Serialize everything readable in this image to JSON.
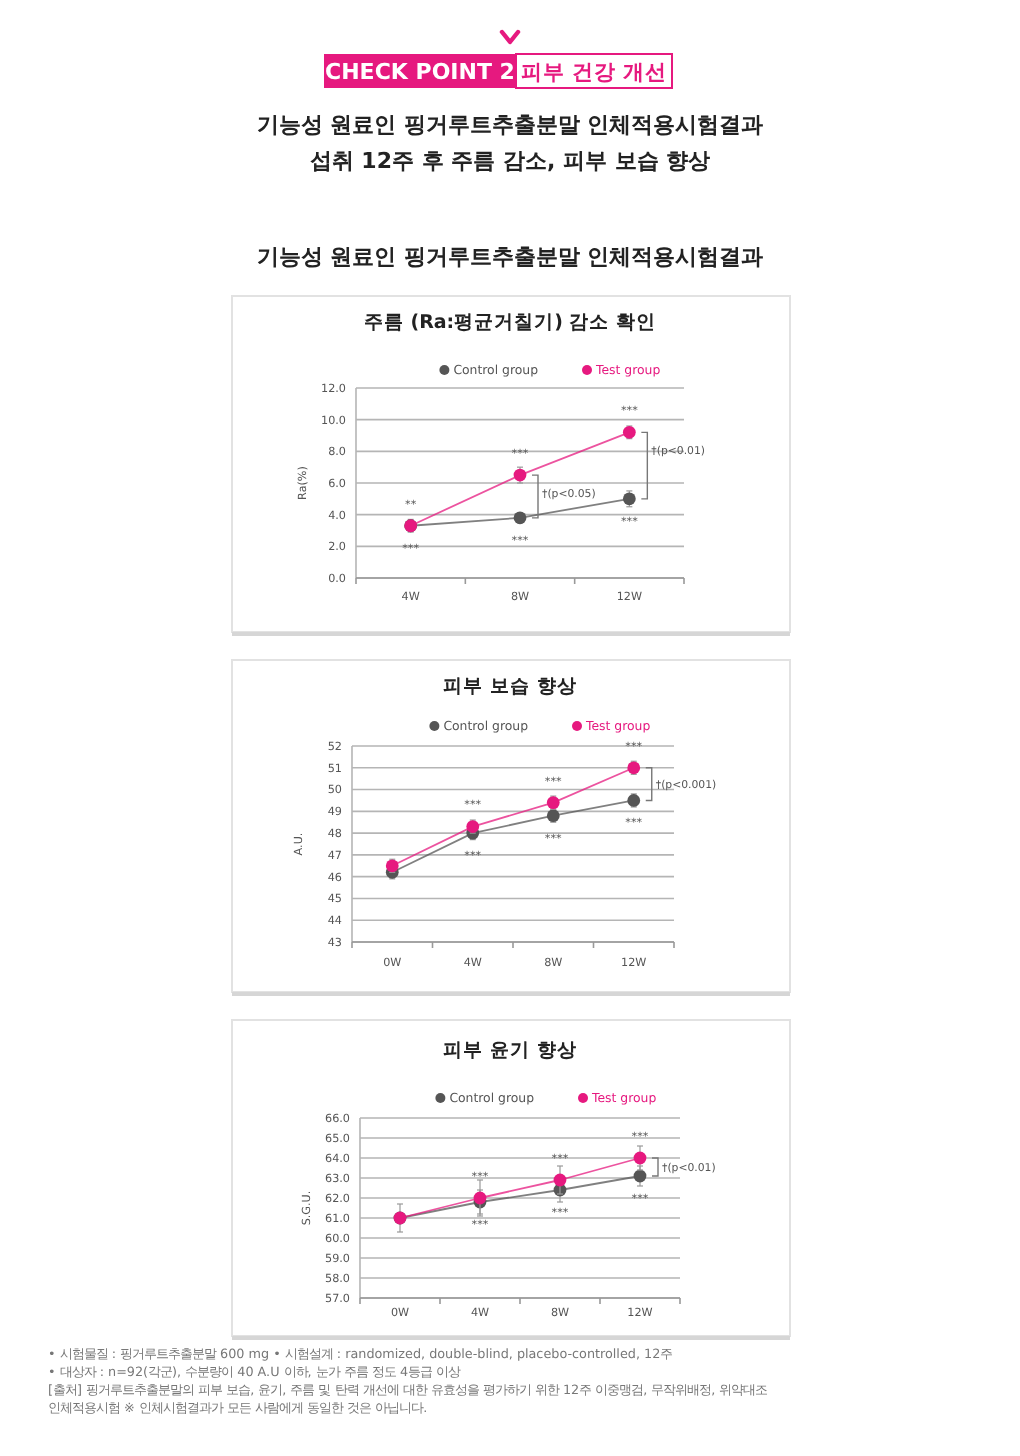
{
  "chart_data": [
    {
      "type": "other",
      "title": "기능성 원료인 핑거루트추출분말 인체적용시험결과",
      "annotations": [
        "CHECK POINT 2",
        "피부 건강 개선",
        "기능성 원료인 핑거루트추출분말 인체적용시험결과",
        "섭취 12주 후 주름 감소, 피부 보습 향상"
      ]
    },
    {
      "type": "line",
      "title": "주름 (Ra:평균거칠기) 감소 확인",
      "ylabel": "Ra(%)",
      "categories": [
        "4W",
        "8W",
        "12W"
      ],
      "ylim": [
        0,
        12
      ],
      "yticks": [
        {
          "value": 0,
          "label": "0.0"
        },
        {
          "value": 2,
          "label": "2.0"
        },
        {
          "value": 4,
          "label": "4.0"
        },
        {
          "value": 6,
          "label": "6.0"
        },
        {
          "value": 8,
          "label": "8.0"
        },
        {
          "value": 10,
          "label": "10.0"
        },
        {
          "value": 12,
          "label": "12.0"
        }
      ],
      "grid": "y",
      "legend": "top right",
      "marker": "circle",
      "line_style": "solid",
      "series": [
        {
          "name": "Control group",
          "color": "#555555",
          "values": [
            3.3,
            3.8,
            5.0
          ],
          "errors": [
            0.4,
            0.3,
            0.5
          ]
        },
        {
          "name": "Test group",
          "color": "#e6197f",
          "values": [
            3.3,
            6.5,
            9.2
          ],
          "errors": [
            0.3,
            0.5,
            0.4
          ]
        }
      ],
      "annotations": [
        {
          "text": "**",
          "x": "4W",
          "y": 3.3
        },
        {
          "text": "***",
          "x": "4W",
          "y": 3.3
        },
        {
          "text": "***",
          "x": "8W",
          "y": 6.5
        },
        {
          "text": "***",
          "x": "8W",
          "y": 3.8
        },
        {
          "text": "†(p<0.05)",
          "x": "8W",
          "y": 6.5
        },
        {
          "text": "***",
          "x": "12W",
          "y": 9.2
        },
        {
          "text": "***",
          "x": "12W",
          "y": 5.0
        },
        {
          "text": "†(p<0.01)",
          "x": "12W",
          "y": 9.2
        }
      ]
    },
    {
      "type": "line",
      "title": "피부 보습 향상",
      "ylabel": "A.U.",
      "categories": [
        "0W",
        "4W",
        "8W",
        "12W"
      ],
      "ylim": [
        43,
        52
      ],
      "yticks": [
        43,
        44,
        45,
        46,
        47,
        48,
        49,
        50,
        51,
        52
      ],
      "grid": "y",
      "legend": "top right",
      "marker": "circle",
      "line_style": "solid",
      "series": [
        {
          "name": "Control group",
          "color": "#555555",
          "values": [
            46.2,
            48.0,
            48.8,
            49.5
          ],
          "errors": [
            0.3,
            0.3,
            0.3,
            0.3
          ]
        },
        {
          "name": "Test group",
          "color": "#e6197f",
          "values": [
            46.5,
            48.3,
            49.4,
            51.0
          ],
          "errors": [
            0.3,
            0.3,
            0.3,
            0.3
          ]
        }
      ],
      "annotations": [
        {
          "text": "***",
          "x": "4W",
          "y": 48.3
        },
        {
          "text": "***",
          "x": "4W",
          "y": 48.0
        },
        {
          "text": "***",
          "x": "8W",
          "y": 49.4
        },
        {
          "text": "***",
          "x": "8W",
          "y": 48.8
        },
        {
          "text": "***",
          "x": "12W",
          "y": 51.0
        },
        {
          "text": "***",
          "x": "12W",
          "y": 49.5
        },
        {
          "text": "†(p<0.001)",
          "x": "12W",
          "y": 51.0
        }
      ]
    },
    {
      "type": "line",
      "title": "피부 윤기 향상",
      "ylabel": "S.G.U.",
      "categories": [
        "0W",
        "4W",
        "8W",
        "12W"
      ],
      "ylim": [
        57,
        66
      ],
      "yticks": [
        {
          "value": 57,
          "label": "57.0"
        },
        {
          "value": 58,
          "label": "58.0"
        },
        {
          "value": 59,
          "label": "59.0"
        },
        {
          "value": 60,
          "label": "60.0"
        },
        {
          "value": 61,
          "label": "61.0"
        },
        {
          "value": 62,
          "label": "62.0"
        },
        {
          "value": 63,
          "label": "63.0"
        },
        {
          "value": 64,
          "label": "64.0"
        },
        {
          "value": 65,
          "label": "65.0"
        },
        {
          "value": 66,
          "label": "66.0"
        }
      ],
      "grid": "y",
      "legend": "top right",
      "marker": "circle",
      "line_style": "solid",
      "series": [
        {
          "name": "Control group",
          "color": "#555555",
          "values": [
            61.0,
            61.8,
            62.4,
            63.1
          ],
          "errors": [
            0.7,
            0.6,
            0.6,
            0.5
          ]
        },
        {
          "name": "Test group",
          "color": "#e6197f",
          "values": [
            61.0,
            62.0,
            62.9,
            64.0
          ],
          "errors": [
            null,
            0.9,
            0.7,
            0.6
          ]
        }
      ],
      "annotations": [
        {
          "text": "***",
          "x": "4W",
          "y": 62.0
        },
        {
          "text": "***",
          "x": "4W",
          "y": 61.8
        },
        {
          "text": "***",
          "x": "8W",
          "y": 62.9
        },
        {
          "text": "***",
          "x": "8W",
          "y": 62.4
        },
        {
          "text": "***",
          "x": "12W",
          "y": 64.0
        },
        {
          "text": "***",
          "x": "12W",
          "y": 63.1
        },
        {
          "text": "†(p<0.01)",
          "x": "12W",
          "y": 64.0
        }
      ]
    },
    {
      "type": "other",
      "annotations": [
        "• 시험물질 : 핑거루트추출분말 600 mg • 시험설계 : randomized, double-blind, placebo-controlled, 12주",
        "• 대상자 : n=92(각군), 수분량이 40 A.U 이하, 눈가 주름 정도 4등급 이상",
        "[출처] 핑거루트추출분말의 피부 보습, 윤기, 주름 및 탄력 개선에 대한 유효성을 평가하기 위한 12주 이중맹검, 무작위배정, 위약대조",
        "인체적용시험 ※ 인체시험결과가 모든 사람에게 동일한 것은 아닙니다."
      ]
    }
  ]
}
